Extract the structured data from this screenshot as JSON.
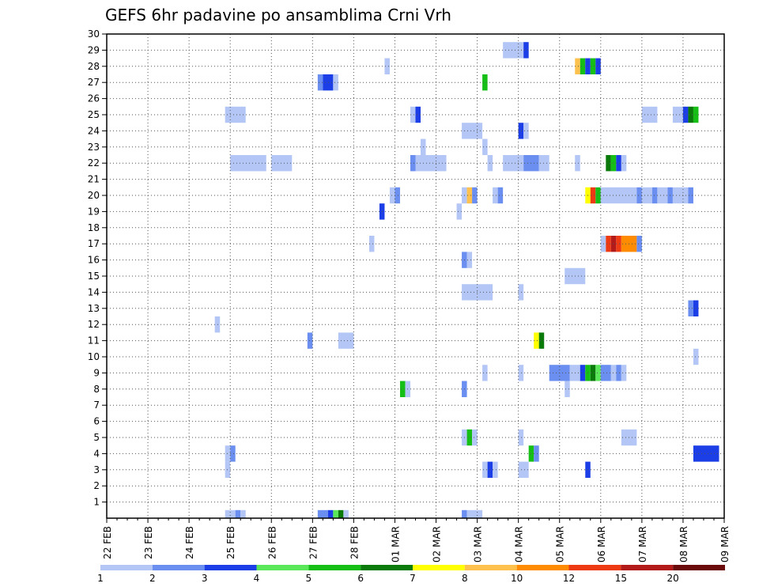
{
  "chart_data": {
    "type": "heatmap",
    "title": "GEFS 6hr padavine po ansamblima Crni Vrh",
    "xlabel": "",
    "ylabel": "",
    "x_ticks": [
      "22 FEB",
      "23 FEB",
      "24 FEB",
      "25 FEB",
      "26 FEB",
      "27 FEB",
      "28 FEB",
      "01 MAR",
      "02 MAR",
      "03 MAR",
      "04 MAR",
      "05 MAR",
      "06 MAR",
      "07 MAR",
      "08 MAR",
      "09 MAR"
    ],
    "y_ticks": [
      1,
      2,
      3,
      4,
      5,
      6,
      7,
      8,
      9,
      10,
      11,
      12,
      13,
      14,
      15,
      16,
      17,
      18,
      19,
      20,
      21,
      22,
      23,
      24,
      25,
      26,
      27,
      28,
      29,
      30
    ],
    "y_range": [
      0,
      30
    ],
    "grid": true,
    "steps_per_day": 4,
    "colorbar": {
      "labels": [
        "1",
        "2",
        "3",
        "4",
        "5",
        "6",
        "7",
        "8",
        "10",
        "12",
        "15",
        "20"
      ],
      "colors": [
        "#b3c6f5",
        "#6b8ff0",
        "#1c3ee6",
        "#5ae85a",
        "#16bf16",
        "#0a7a0a",
        "#ffff00",
        "#ffc14d",
        "#ff8c00",
        "#ee3a12",
        "#b31a1a",
        "#6b0a0a"
      ]
    },
    "cells": [
      [
        0,
        11.5,
        0,
        12.5,
        0
      ],
      [
        0,
        12.5,
        0,
        13.0,
        1
      ],
      [
        0,
        13.0,
        0,
        13.5,
        0
      ],
      [
        0,
        20.5,
        0,
        21.5,
        1
      ],
      [
        0,
        21.5,
        0,
        22.0,
        2
      ],
      [
        0,
        22.0,
        0,
        22.5,
        3
      ],
      [
        0,
        22.5,
        0,
        23.0,
        5
      ],
      [
        0,
        23.0,
        0,
        23.5,
        0
      ],
      [
        0,
        34.5,
        0,
        35.0,
        1
      ],
      [
        0,
        35.0,
        0,
        36.5,
        0
      ],
      [
        3,
        11.5,
        3,
        12.0,
        0
      ],
      [
        3,
        36.5,
        3,
        37.0,
        0
      ],
      [
        3,
        37.0,
        3,
        37.5,
        2
      ],
      [
        3,
        37.5,
        3,
        38.0,
        0
      ],
      [
        3,
        40.0,
        3,
        41.0,
        0
      ],
      [
        3,
        46.5,
        3,
        47.0,
        2
      ],
      [
        4,
        11.5,
        4,
        12.0,
        0
      ],
      [
        4,
        12.0,
        4,
        12.5,
        1
      ],
      [
        4,
        41.0,
        4,
        41.5,
        4
      ],
      [
        4,
        41.5,
        4,
        42.0,
        1
      ],
      [
        4,
        57.0,
        4,
        59.5,
        2
      ],
      [
        5,
        34.5,
        5,
        35.0,
        0
      ],
      [
        5,
        35.0,
        5,
        35.5,
        4
      ],
      [
        5,
        35.5,
        5,
        36.0,
        0
      ],
      [
        5,
        40.0,
        5,
        40.5,
        0
      ],
      [
        5,
        50.0,
        5,
        51.5,
        0
      ],
      [
        8,
        28.5,
        8,
        29.0,
        4
      ],
      [
        8,
        29.0,
        8,
        29.5,
        0
      ],
      [
        8,
        34.5,
        8,
        35.0,
        1
      ],
      [
        8,
        44.5,
        8,
        45.0,
        0
      ],
      [
        9,
        36.5,
        9,
        37.0,
        0
      ],
      [
        9,
        40.0,
        9,
        40.5,
        0
      ],
      [
        9,
        43.0,
        9,
        45.0,
        1
      ],
      [
        9,
        45.0,
        9,
        46.0,
        0
      ],
      [
        9,
        46.0,
        9,
        46.5,
        2
      ],
      [
        9,
        46.5,
        9,
        47.0,
        4
      ],
      [
        9,
        47.0,
        9,
        47.5,
        5
      ],
      [
        9,
        47.5,
        9,
        48.0,
        3
      ],
      [
        9,
        48.0,
        9,
        49.0,
        1
      ],
      [
        9,
        49.0,
        9,
        49.5,
        0
      ],
      [
        9,
        49.5,
        9,
        50.0,
        1
      ],
      [
        9,
        50.0,
        9,
        50.5,
        0
      ],
      [
        10,
        57.0,
        10,
        57.5,
        0
      ],
      [
        11,
        19.5,
        11,
        20.0,
        1
      ],
      [
        11,
        22.5,
        11,
        24.0,
        0
      ],
      [
        11,
        41.5,
        11,
        42.0,
        6
      ],
      [
        11,
        42.0,
        11,
        42.5,
        5
      ],
      [
        12,
        10.5,
        12,
        11.0,
        0
      ],
      [
        13,
        56.5,
        13,
        57.0,
        1
      ],
      [
        13,
        57.0,
        13,
        57.5,
        2
      ],
      [
        14,
        34.5,
        14,
        37.5,
        0
      ],
      [
        14,
        40.0,
        14,
        40.5,
        0
      ],
      [
        15,
        44.5,
        15,
        46.5,
        0
      ],
      [
        16,
        34.5,
        16,
        35.0,
        1
      ],
      [
        16,
        35.0,
        16,
        35.5,
        0
      ],
      [
        17,
        25.5,
        17,
        26.0,
        0
      ],
      [
        17,
        48.0,
        17,
        48.5,
        0
      ],
      [
        17,
        48.5,
        17,
        49.0,
        9
      ],
      [
        17,
        49.0,
        17,
        49.5,
        10
      ],
      [
        17,
        49.5,
        17,
        50.0,
        9
      ],
      [
        17,
        50.0,
        17,
        51.5,
        8
      ],
      [
        17,
        51.5,
        17,
        52.0,
        1
      ],
      [
        19,
        26.5,
        19,
        27.0,
        2
      ],
      [
        19,
        34.0,
        19,
        34.5,
        0
      ],
      [
        20,
        27.5,
        20,
        28.0,
        0
      ],
      [
        20,
        28.0,
        20,
        28.5,
        1
      ],
      [
        20,
        34.5,
        20,
        35.0,
        0
      ],
      [
        20,
        35.0,
        20,
        35.5,
        7
      ],
      [
        20,
        35.5,
        20,
        36.0,
        1
      ],
      [
        20,
        37.5,
        20,
        38.0,
        0
      ],
      [
        20,
        38.0,
        20,
        38.5,
        1
      ],
      [
        20,
        46.5,
        20,
        47.0,
        6
      ],
      [
        20,
        47.0,
        20,
        47.5,
        9
      ],
      [
        20,
        47.5,
        20,
        48.0,
        4
      ],
      [
        20,
        48.0,
        20,
        51.5,
        0
      ],
      [
        20,
        51.5,
        20,
        52.0,
        1
      ],
      [
        20,
        52.0,
        20,
        53.0,
        0
      ],
      [
        20,
        53.0,
        20,
        53.5,
        1
      ],
      [
        20,
        53.5,
        20,
        54.5,
        0
      ],
      [
        20,
        54.5,
        20,
        55.0,
        1
      ],
      [
        20,
        55.0,
        20,
        56.5,
        0
      ],
      [
        20,
        56.5,
        20,
        57.0,
        1
      ],
      [
        22,
        12.0,
        22,
        15.5,
        0
      ],
      [
        22,
        16.0,
        22,
        18.0,
        0
      ],
      [
        22,
        29.5,
        22,
        30.0,
        1
      ],
      [
        22,
        30.0,
        22,
        33.0,
        0
      ],
      [
        22,
        37.0,
        22,
        37.5,
        0
      ],
      [
        22,
        38.5,
        22,
        40.5,
        0
      ],
      [
        22,
        40.5,
        22,
        42.0,
        1
      ],
      [
        22,
        42.0,
        22,
        43.0,
        0
      ],
      [
        22,
        45.5,
        22,
        46.0,
        0
      ],
      [
        22,
        48.5,
        22,
        49.0,
        5
      ],
      [
        22,
        49.0,
        22,
        49.5,
        4
      ],
      [
        22,
        49.5,
        22,
        50.0,
        2
      ],
      [
        22,
        50.0,
        22,
        50.5,
        0
      ],
      [
        23,
        30.5,
        23,
        31.0,
        0
      ],
      [
        23,
        36.5,
        23,
        37.0,
        0
      ],
      [
        24,
        34.5,
        24,
        36.5,
        0
      ],
      [
        24,
        40.0,
        24,
        40.5,
        2
      ],
      [
        24,
        40.5,
        24,
        41.0,
        0
      ],
      [
        25,
        11.5,
        25,
        13.5,
        0
      ],
      [
        25,
        29.5,
        25,
        30.0,
        0
      ],
      [
        25,
        30.0,
        25,
        30.5,
        2
      ],
      [
        25,
        52.0,
        25,
        53.5,
        0
      ],
      [
        25,
        55.0,
        25,
        56.0,
        0
      ],
      [
        25,
        56.0,
        25,
        56.5,
        2
      ],
      [
        25,
        56.5,
        25,
        57.0,
        5
      ],
      [
        25,
        57.0,
        25,
        57.5,
        4
      ],
      [
        27,
        20.5,
        27,
        21.0,
        1
      ],
      [
        27,
        21.0,
        27,
        22.0,
        2
      ],
      [
        27,
        22.0,
        27,
        22.5,
        0
      ],
      [
        27,
        36.5,
        27,
        37.0,
        4
      ],
      [
        28,
        27.0,
        28,
        27.5,
        0
      ],
      [
        28,
        45.5,
        28,
        46.0,
        7
      ],
      [
        28,
        46.0,
        28,
        46.5,
        4
      ],
      [
        28,
        46.5,
        28,
        47.0,
        2
      ],
      [
        28,
        47.0,
        28,
        47.5,
        4
      ],
      [
        28,
        47.5,
        28,
        48.0,
        2
      ],
      [
        29,
        38.5,
        29,
        40.5,
        0
      ],
      [
        29,
        40.5,
        29,
        41.0,
        2
      ]
    ]
  }
}
